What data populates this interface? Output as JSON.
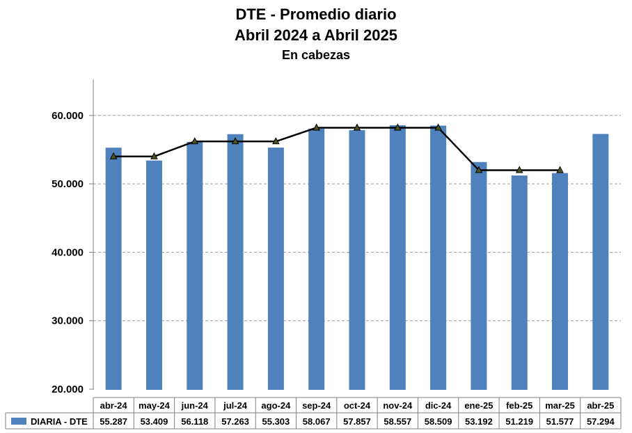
{
  "chart_data": {
    "type": "bar",
    "title": "DTE - Promedio diario",
    "subtitle": "Abril 2024 a Abril 2025",
    "unit_label": "En cabezas",
    "xlabel": "",
    "ylabel": "",
    "ylim": [
      20000,
      65000
    ],
    "yticks": [
      "20.000",
      "30.000",
      "40.000",
      "50.000",
      "60.000"
    ],
    "ytick_values": [
      20000,
      30000,
      40000,
      50000,
      60000
    ],
    "grid": "horizontal-dashed",
    "categories": [
      "abr-24",
      "may-24",
      "jun-24",
      "jul-24",
      "ago-24",
      "sep-24",
      "oct-24",
      "nov-24",
      "dic-24",
      "ene-25",
      "feb-25",
      "mar-25",
      "abr-25"
    ],
    "series": [
      {
        "name": "DIARIA -  DTE",
        "type": "bar",
        "color": "#4f81bd",
        "values": [
          55287,
          53409,
          56118,
          57263,
          55303,
          58067,
          57857,
          58557,
          58509,
          53192,
          51219,
          51577,
          57294
        ],
        "labels": [
          "55.287",
          "53.409",
          "56.118",
          "57.263",
          "55.303",
          "58.067",
          "57.857",
          "58.557",
          "58.509",
          "53.192",
          "51.219",
          "51.577",
          "57.294"
        ]
      },
      {
        "type": "line",
        "color": "#000000",
        "marker_color": "#4b5320",
        "values": [
          54000,
          54000,
          56200,
          56200,
          56200,
          58200,
          58200,
          58200,
          58200,
          52000,
          52000,
          52000,
          null
        ]
      }
    ],
    "legend": "bottom-table"
  }
}
